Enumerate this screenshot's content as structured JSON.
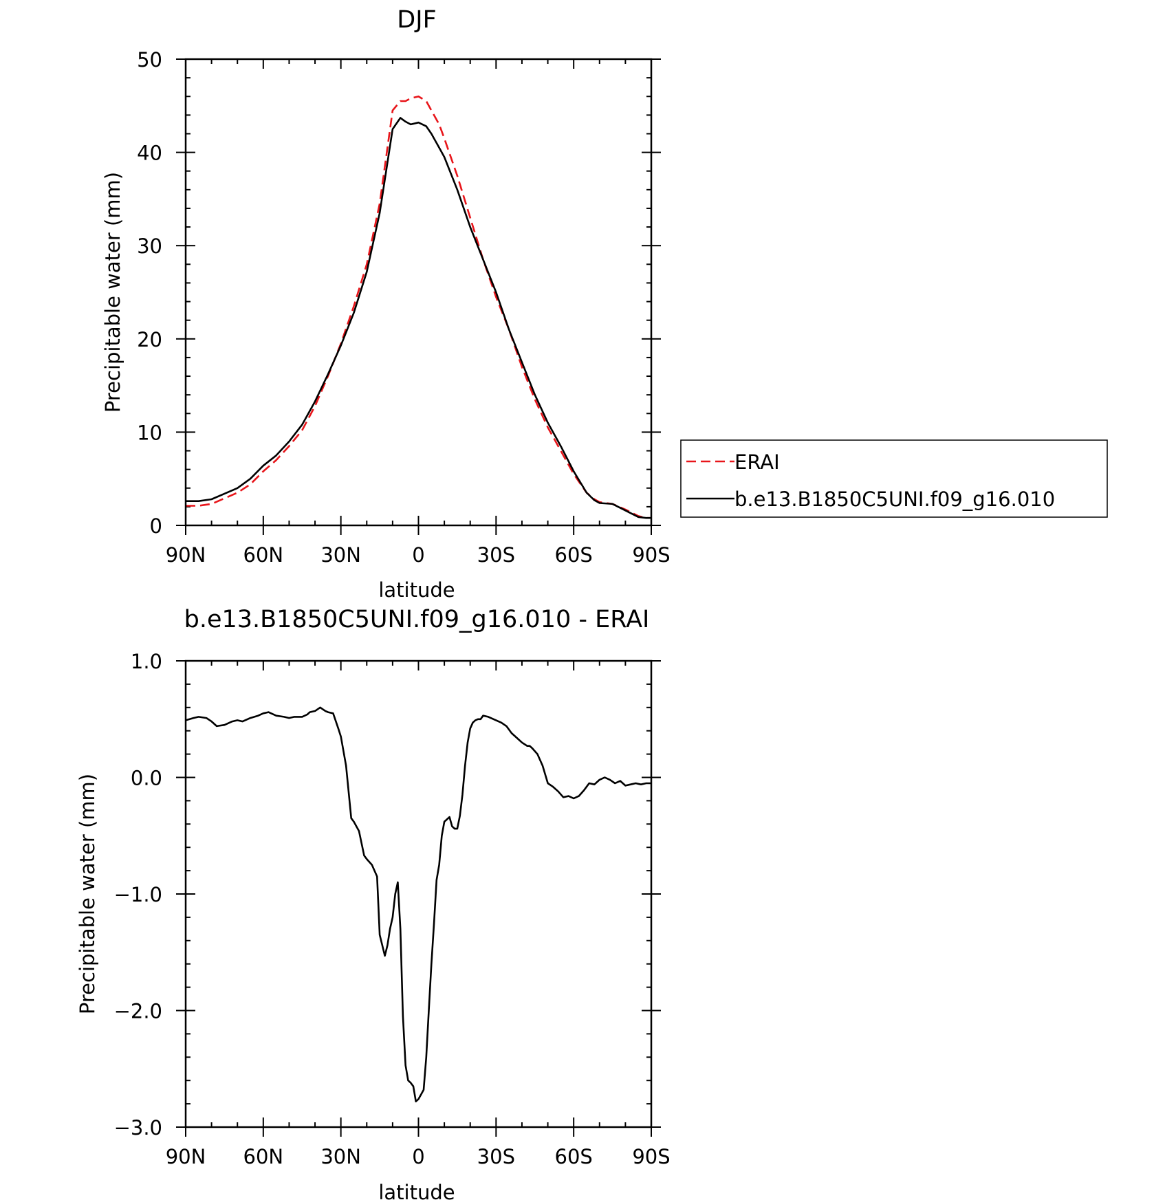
{
  "chart_data": [
    {
      "type": "line",
      "title": "DJF",
      "xlabel": "latitude",
      "ylabel": "Precipitable water (mm)",
      "xlim": [
        90,
        -90
      ],
      "ylim": [
        0,
        50
      ],
      "x_ticks": [
        90,
        60,
        30,
        0,
        -30,
        -60,
        -90
      ],
      "x_tick_labels": [
        "90N",
        "60N",
        "30N",
        "0",
        "30S",
        "60S",
        "90S"
      ],
      "y_ticks": [
        0,
        10,
        20,
        30,
        40,
        50
      ],
      "y_tick_labels": [
        "0",
        "10",
        "20",
        "30",
        "40",
        "50"
      ],
      "legend": "right, outside plot",
      "grid": false,
      "series": [
        {
          "name": "ERAI",
          "color": "#e8151a",
          "style": "dashed",
          "x": [
            90,
            85,
            80,
            75,
            70,
            65,
            60,
            55,
            50,
            45,
            40,
            35,
            30,
            25,
            20,
            15,
            10,
            7,
            5,
            3,
            0,
            -3,
            -5,
            -8,
            -10,
            -15,
            -20,
            -25,
            -30,
            -35,
            -40,
            -45,
            -50,
            -55,
            -60,
            -65,
            -68,
            -70,
            -75,
            -80,
            -85,
            -88,
            -90
          ],
          "y": [
            2.1,
            2.1,
            2.3,
            2.9,
            3.5,
            4.4,
            5.8,
            7.0,
            8.5,
            10.2,
            12.8,
            16.0,
            19.5,
            23.5,
            28.0,
            34.5,
            44.5,
            45.5,
            45.5,
            45.8,
            46.0,
            45.5,
            44.5,
            43.0,
            41.5,
            37.5,
            33.0,
            28.5,
            24.5,
            21.0,
            17.0,
            13.5,
            10.5,
            8.0,
            5.5,
            3.5,
            2.8,
            2.5,
            2.3,
            1.7,
            1.0,
            0.8,
            0.8
          ]
        },
        {
          "name": "b.e13.B1850C5UNI.f09_g16.010",
          "color": "#000000",
          "style": "solid",
          "x": [
            90,
            85,
            80,
            75,
            70,
            65,
            60,
            55,
            50,
            45,
            40,
            35,
            30,
            25,
            20,
            15,
            10,
            7,
            5,
            3,
            0,
            -3,
            -5,
            -8,
            -10,
            -15,
            -20,
            -25,
            -30,
            -35,
            -40,
            -45,
            -50,
            -55,
            -60,
            -65,
            -68,
            -70,
            -75,
            -80,
            -85,
            -88,
            -90
          ],
          "y": [
            2.6,
            2.6,
            2.8,
            3.4,
            4.0,
            5.0,
            6.4,
            7.5,
            9.0,
            10.8,
            13.3,
            16.2,
            19.3,
            22.8,
            27.2,
            33.5,
            42.5,
            43.7,
            43.3,
            43.0,
            43.2,
            42.8,
            42.0,
            40.5,
            39.5,
            36.0,
            32.0,
            28.5,
            25.0,
            21.0,
            17.5,
            14.0,
            11.0,
            8.5,
            5.8,
            3.5,
            2.7,
            2.4,
            2.3,
            1.6,
            0.9,
            0.8,
            0.8
          ]
        }
      ]
    },
    {
      "type": "line",
      "title": "b.e13.B1850C5UNI.f09_g16.010 - ERAI",
      "xlabel": "latitude",
      "ylabel": "Precipitable water (mm)",
      "xlim": [
        90,
        -90
      ],
      "ylim": [
        -3,
        1
      ],
      "x_ticks": [
        90,
        60,
        30,
        0,
        -30,
        -60,
        -90
      ],
      "x_tick_labels": [
        "90N",
        "60N",
        "30N",
        "0",
        "30S",
        "60S",
        "90S"
      ],
      "y_ticks": [
        -3,
        -2,
        -1,
        0,
        1
      ],
      "y_tick_labels": [
        "−3.0",
        "−2.0",
        "−1.0",
        "0.0",
        "1.0"
      ],
      "grid": false,
      "series": [
        {
          "color": "#000000",
          "style": "solid",
          "x": [
            90,
            87,
            85,
            82,
            80,
            78,
            75,
            72,
            70,
            68,
            65,
            62,
            60,
            58,
            55,
            52,
            50,
            48,
            45,
            43,
            42,
            40,
            38,
            36,
            35,
            33,
            31,
            30,
            28,
            26,
            25,
            23,
            21,
            20,
            18,
            16,
            15,
            13,
            12,
            11,
            10,
            9,
            8,
            7,
            6,
            5,
            4,
            3,
            2,
            1,
            0,
            -1,
            -2,
            -3,
            -4,
            -5,
            -6,
            -7,
            -8,
            -9,
            -10,
            -11,
            -12,
            -13,
            -14,
            -15,
            -16,
            -17,
            -18,
            -19,
            -20,
            -21,
            -22,
            -23,
            -24,
            -25,
            -27,
            -29,
            -30,
            -32,
            -34,
            -36,
            -38,
            -40,
            -42,
            -43,
            -44,
            -46,
            -48,
            -50,
            -52,
            -54,
            -56,
            -58,
            -60,
            -62,
            -64,
            -66,
            -68,
            -70,
            -72,
            -74,
            -76,
            -78,
            -80,
            -82,
            -84,
            -86,
            -88,
            -90
          ],
          "y": [
            0.49,
            0.51,
            0.52,
            0.51,
            0.48,
            0.44,
            0.45,
            0.48,
            0.49,
            0.48,
            0.51,
            0.53,
            0.55,
            0.56,
            0.53,
            0.52,
            0.51,
            0.52,
            0.52,
            0.54,
            0.56,
            0.57,
            0.6,
            0.57,
            0.56,
            0.55,
            0.42,
            0.35,
            0.1,
            -0.35,
            -0.38,
            -0.46,
            -0.67,
            -0.7,
            -0.75,
            -0.85,
            -1.35,
            -1.53,
            -1.44,
            -1.3,
            -1.2,
            -1.0,
            -0.9,
            -1.3,
            -2.05,
            -2.47,
            -2.6,
            -2.62,
            -2.65,
            -2.78,
            -2.76,
            -2.72,
            -2.68,
            -2.4,
            -2.0,
            -1.6,
            -1.25,
            -0.88,
            -0.75,
            -0.5,
            -0.38,
            -0.36,
            -0.34,
            -0.42,
            -0.44,
            -0.44,
            -0.33,
            -0.15,
            0.1,
            0.3,
            0.42,
            0.47,
            0.49,
            0.5,
            0.5,
            0.53,
            0.52,
            0.5,
            0.49,
            0.47,
            0.44,
            0.38,
            0.34,
            0.3,
            0.27,
            0.27,
            0.25,
            0.2,
            0.1,
            -0.05,
            -0.08,
            -0.12,
            -0.17,
            -0.16,
            -0.18,
            -0.16,
            -0.11,
            -0.05,
            -0.06,
            -0.02,
            0.0,
            -0.02,
            -0.05,
            -0.03,
            -0.07,
            -0.06,
            -0.05,
            -0.06,
            -0.05,
            -0.05
          ]
        }
      ]
    }
  ]
}
